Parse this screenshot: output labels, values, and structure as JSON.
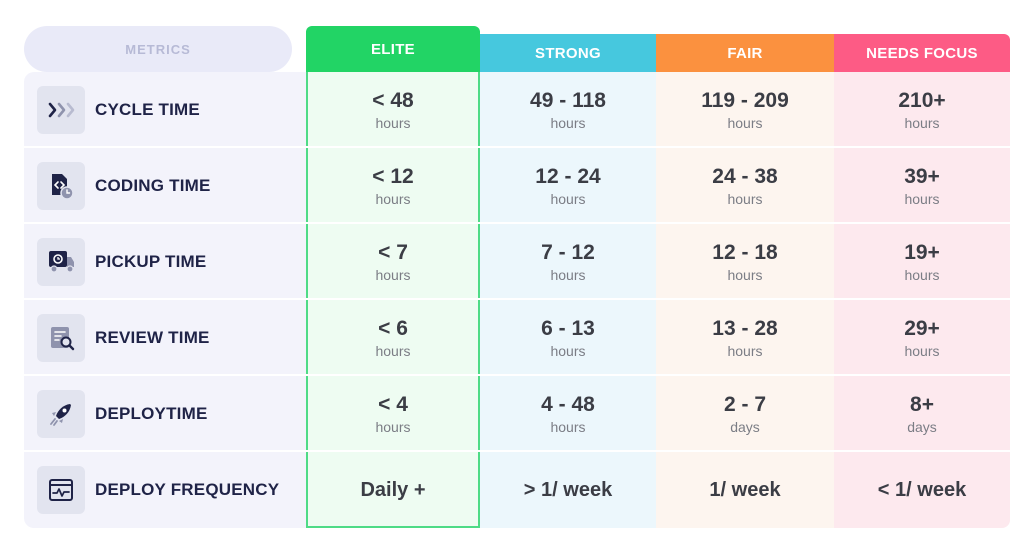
{
  "header": {
    "metrics": "METRICS",
    "elite": "ELITE",
    "strong": "STRONG",
    "fair": "FAIR",
    "needs_focus": "NEEDS FOCUS"
  },
  "colors": {
    "elite": "#22d465",
    "strong": "#46c8de",
    "fair": "#fb913f",
    "needs_focus": "#fd5b85"
  },
  "rows": [
    {
      "metric": "CYCLE TIME",
      "icon": "chevrons-icon",
      "elite": {
        "value": "< 48",
        "unit": "hours"
      },
      "strong": {
        "value": "49 - 118",
        "unit": "hours"
      },
      "fair": {
        "value": "119 - 209",
        "unit": "hours"
      },
      "needs_focus": {
        "value": "210+",
        "unit": "hours"
      }
    },
    {
      "metric": "CODING TIME",
      "icon": "code-file-clock-icon",
      "elite": {
        "value": "< 12",
        "unit": "hours"
      },
      "strong": {
        "value": "12 - 24",
        "unit": "hours"
      },
      "fair": {
        "value": "24 - 38",
        "unit": "hours"
      },
      "needs_focus": {
        "value": "39+",
        "unit": "hours"
      }
    },
    {
      "metric": "PICKUP TIME",
      "icon": "pickup-truck-icon",
      "elite": {
        "value": "< 7",
        "unit": "hours"
      },
      "strong": {
        "value": "7 - 12",
        "unit": "hours"
      },
      "fair": {
        "value": "12 - 18",
        "unit": "hours"
      },
      "needs_focus": {
        "value": "19+",
        "unit": "hours"
      }
    },
    {
      "metric": "REVIEW TIME",
      "icon": "document-search-icon",
      "elite": {
        "value": "< 6",
        "unit": "hours"
      },
      "strong": {
        "value": "6 - 13",
        "unit": "hours"
      },
      "fair": {
        "value": "13 - 28",
        "unit": "hours"
      },
      "needs_focus": {
        "value": "29+",
        "unit": "hours"
      }
    },
    {
      "metric": "DEPLOYTIME",
      "icon": "rocket-icon",
      "elite": {
        "value": "< 4",
        "unit": "hours"
      },
      "strong": {
        "value": "4 - 48",
        "unit": "hours"
      },
      "fair": {
        "value": "2 - 7",
        "unit": "days"
      },
      "needs_focus": {
        "value": "8+",
        "unit": "days"
      }
    },
    {
      "metric": "DEPLOY FREQUENCY",
      "icon": "pulse-window-icon",
      "elite": {
        "value": "Daily +",
        "unit": ""
      },
      "strong": {
        "value": "> 1/ week",
        "unit": ""
      },
      "fair": {
        "value": "1/ week",
        "unit": ""
      },
      "needs_focus": {
        "value": "< 1/ week",
        "unit": ""
      }
    }
  ]
}
